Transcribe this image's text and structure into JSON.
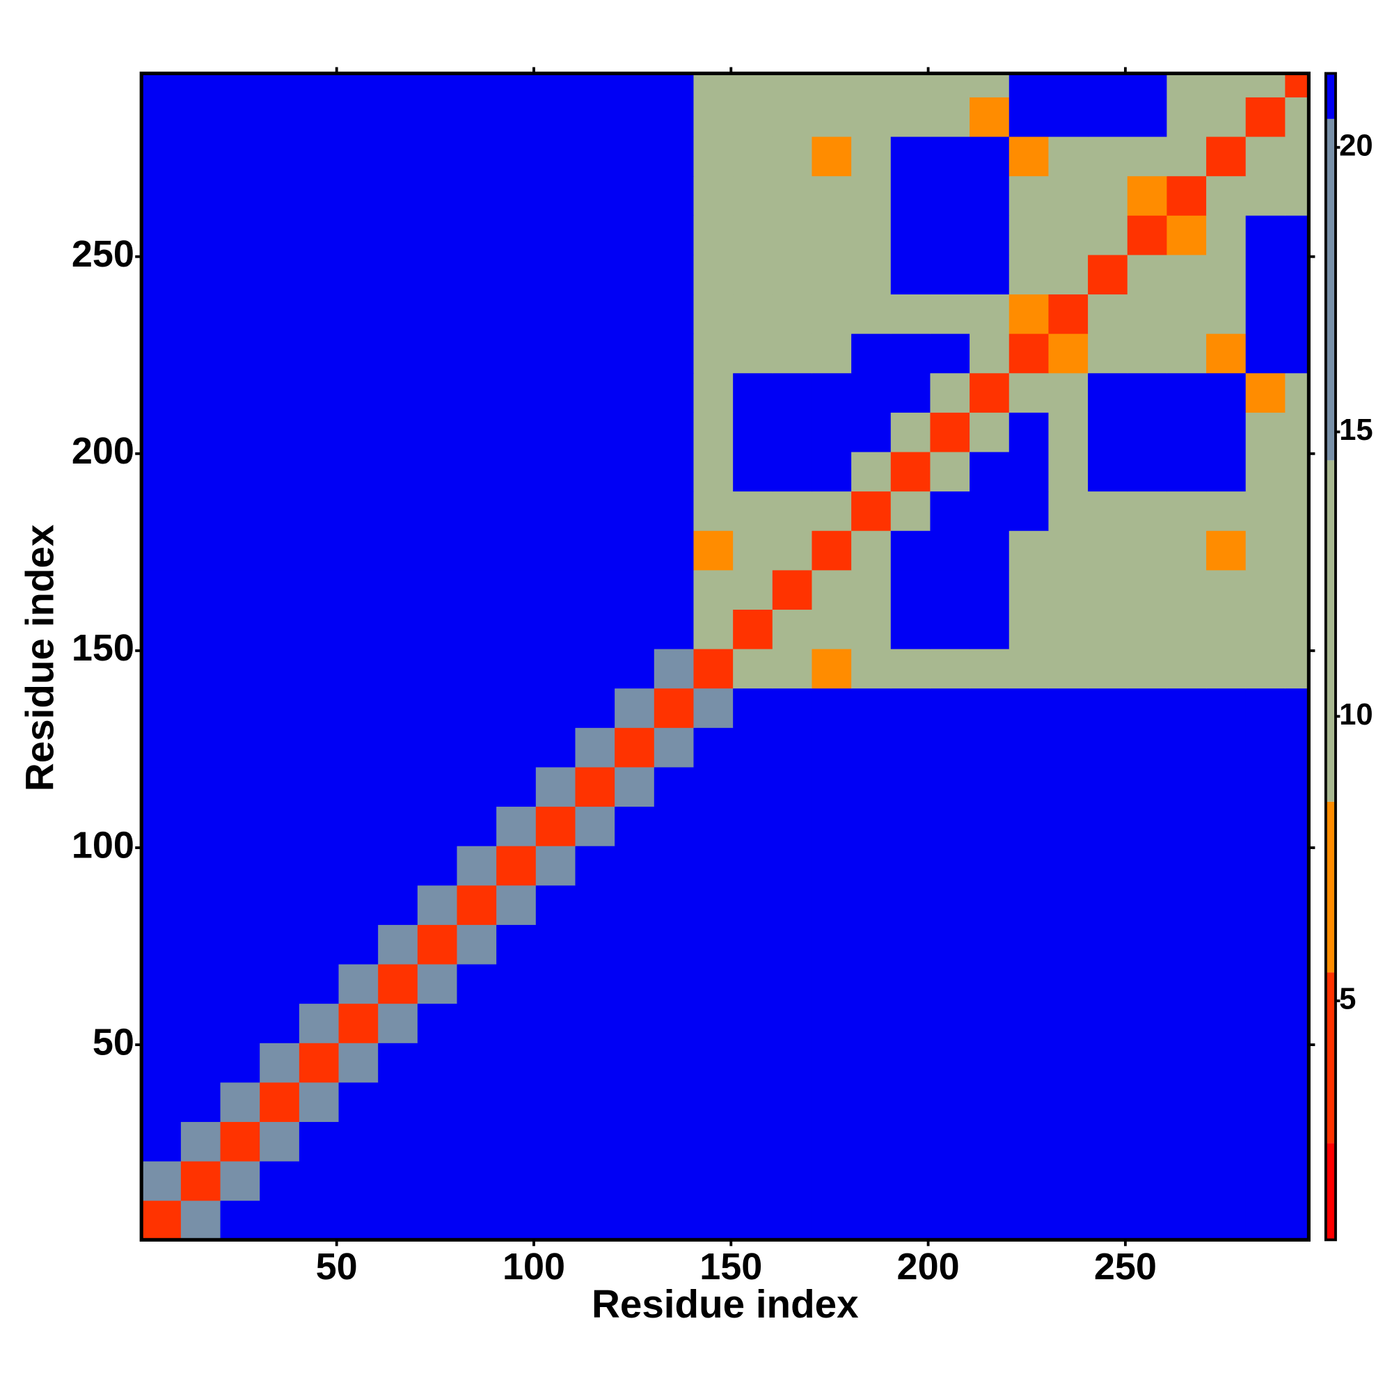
{
  "chart_data": {
    "type": "heatmap",
    "xlabel": "Residue index",
    "ylabel": "Residue index",
    "xlim": [
      0.5,
      296.5
    ],
    "ylim": [
      0.5,
      296.5
    ],
    "xticks": [
      50,
      100,
      150,
      200,
      250
    ],
    "yticks": [
      50,
      100,
      150,
      200,
      250
    ],
    "xbins": [
      0.5,
      10.5,
      20.5,
      30.5,
      40.5,
      50.5,
      60.5,
      70.5,
      80.5,
      90.5,
      100.5,
      110.5,
      120.5,
      130.5,
      140.5,
      150.5,
      160.5,
      170.5,
      180.5,
      190.5,
      200.5,
      210.5,
      220.5,
      230.5,
      240.5,
      250.5,
      260.5,
      270.5,
      280.5,
      290.5,
      296.5
    ],
    "ybins": [
      0.5,
      10.5,
      20.5,
      30.5,
      40.5,
      50.5,
      60.5,
      70.5,
      80.5,
      90.5,
      100.5,
      110.5,
      120.5,
      130.5,
      140.5,
      150.5,
      160.5,
      170.5,
      180.5,
      190.5,
      200.5,
      210.5,
      220.5,
      230.5,
      240.5,
      250.5,
      260.5,
      270.5,
      280.5,
      290.5,
      296.5
    ],
    "zlim": [
      0.8,
      21.3
    ],
    "zticks": [
      5,
      10,
      15,
      20
    ],
    "colorscale": [
      {
        "value": 2.5,
        "color": "#ff0000"
      },
      {
        "value": 5.5,
        "color": "#ff3300"
      },
      {
        "value": 8.5,
        "color": "#ff8c00"
      },
      {
        "value": 14.5,
        "color": "#a8b890"
      },
      {
        "value": 20.5,
        "color": "#7890a8"
      },
      {
        "value": 21.3,
        "color": "#0000f5"
      }
    ],
    "z": [
      [
        3,
        16,
        21,
        21,
        21,
        21,
        21,
        21,
        21,
        21,
        21,
        21,
        21,
        21,
        21,
        21,
        21,
        21,
        21,
        21,
        21,
        21,
        21,
        21,
        21,
        21,
        21,
        21,
        21,
        21
      ],
      [
        16,
        3,
        16,
        21,
        21,
        21,
        21,
        21,
        21,
        21,
        21,
        21,
        21,
        21,
        21,
        21,
        21,
        21,
        21,
        21,
        21,
        21,
        21,
        21,
        21,
        21,
        21,
        21,
        21,
        21
      ],
      [
        21,
        16,
        3,
        16,
        21,
        21,
        21,
        21,
        21,
        21,
        21,
        21,
        21,
        21,
        21,
        21,
        21,
        21,
        21,
        21,
        21,
        21,
        21,
        21,
        21,
        21,
        21,
        21,
        21,
        21
      ],
      [
        21,
        21,
        16,
        3,
        16,
        21,
        21,
        21,
        21,
        21,
        21,
        21,
        21,
        21,
        21,
        21,
        21,
        21,
        21,
        21,
        21,
        21,
        21,
        21,
        21,
        21,
        21,
        21,
        21,
        21
      ],
      [
        21,
        21,
        21,
        16,
        3,
        16,
        21,
        21,
        21,
        21,
        21,
        21,
        21,
        21,
        21,
        21,
        21,
        21,
        21,
        21,
        21,
        21,
        21,
        21,
        21,
        21,
        21,
        21,
        21,
        21
      ],
      [
        21,
        21,
        21,
        21,
        16,
        3,
        16,
        21,
        21,
        21,
        21,
        21,
        21,
        21,
        21,
        21,
        21,
        21,
        21,
        21,
        21,
        21,
        21,
        21,
        21,
        21,
        21,
        21,
        21,
        21
      ],
      [
        21,
        21,
        21,
        21,
        21,
        16,
        3,
        16,
        21,
        21,
        21,
        21,
        21,
        21,
        21,
        21,
        21,
        21,
        21,
        21,
        21,
        21,
        21,
        21,
        21,
        21,
        21,
        21,
        21,
        21
      ],
      [
        21,
        21,
        21,
        21,
        21,
        21,
        16,
        3,
        16,
        21,
        21,
        21,
        21,
        21,
        21,
        21,
        21,
        21,
        21,
        21,
        21,
        21,
        21,
        21,
        21,
        21,
        21,
        21,
        21,
        21
      ],
      [
        21,
        21,
        21,
        21,
        21,
        21,
        21,
        16,
        3,
        16,
        21,
        21,
        21,
        21,
        21,
        21,
        21,
        21,
        21,
        21,
        21,
        21,
        21,
        21,
        21,
        21,
        21,
        21,
        21,
        21
      ],
      [
        21,
        21,
        21,
        21,
        21,
        21,
        21,
        21,
        16,
        3,
        16,
        21,
        21,
        21,
        21,
        21,
        21,
        21,
        21,
        21,
        21,
        21,
        21,
        21,
        21,
        21,
        21,
        21,
        21,
        21
      ],
      [
        21,
        21,
        21,
        21,
        21,
        21,
        21,
        21,
        21,
        16,
        3,
        16,
        21,
        21,
        21,
        21,
        21,
        21,
        21,
        21,
        21,
        21,
        21,
        21,
        21,
        21,
        21,
        21,
        21,
        21
      ],
      [
        21,
        21,
        21,
        21,
        21,
        21,
        21,
        21,
        21,
        21,
        16,
        3,
        16,
        21,
        21,
        21,
        21,
        21,
        21,
        21,
        21,
        21,
        21,
        21,
        21,
        21,
        21,
        21,
        21,
        21
      ],
      [
        21,
        21,
        21,
        21,
        21,
        21,
        21,
        21,
        21,
        21,
        21,
        16,
        3,
        16,
        21,
        21,
        21,
        21,
        21,
        21,
        21,
        21,
        21,
        21,
        21,
        21,
        21,
        21,
        21,
        21
      ],
      [
        21,
        21,
        21,
        21,
        21,
        21,
        21,
        21,
        21,
        21,
        21,
        21,
        16,
        3,
        16,
        21,
        21,
        21,
        21,
        21,
        21,
        21,
        21,
        21,
        21,
        21,
        21,
        21,
        21,
        21
      ],
      [
        21,
        21,
        21,
        21,
        21,
        21,
        21,
        21,
        21,
        21,
        21,
        21,
        21,
        16,
        3,
        10,
        14,
        7,
        14,
        14,
        14,
        14,
        14,
        14,
        14,
        14,
        14,
        14,
        14,
        14
      ],
      [
        21,
        21,
        21,
        21,
        21,
        21,
        21,
        21,
        21,
        21,
        21,
        21,
        21,
        21,
        10,
        3,
        10,
        14,
        14,
        21,
        21,
        21,
        14,
        14,
        14,
        14,
        14,
        14,
        14,
        14
      ],
      [
        21,
        21,
        21,
        21,
        21,
        21,
        21,
        21,
        21,
        21,
        21,
        21,
        21,
        21,
        14,
        10,
        3,
        10,
        14,
        21,
        21,
        21,
        14,
        14,
        14,
        14,
        14,
        14,
        14,
        14
      ],
      [
        21,
        21,
        21,
        21,
        21,
        21,
        21,
        21,
        21,
        21,
        21,
        21,
        21,
        21,
        7,
        14,
        10,
        3,
        10,
        21,
        21,
        21,
        14,
        14,
        14,
        14,
        14,
        7,
        14,
        14
      ],
      [
        21,
        21,
        21,
        21,
        21,
        21,
        21,
        21,
        21,
        21,
        21,
        21,
        21,
        21,
        14,
        14,
        14,
        10,
        3,
        10,
        21,
        21,
        21,
        14,
        14,
        14,
        14,
        14,
        14,
        14
      ],
      [
        21,
        21,
        21,
        21,
        21,
        21,
        21,
        21,
        21,
        21,
        21,
        21,
        21,
        21,
        14,
        21,
        21,
        21,
        10,
        3,
        10,
        21,
        21,
        14,
        21,
        21,
        21,
        21,
        14,
        14
      ],
      [
        21,
        21,
        21,
        21,
        21,
        21,
        21,
        21,
        21,
        21,
        21,
        21,
        21,
        21,
        14,
        21,
        21,
        21,
        21,
        10,
        3,
        10,
        21,
        14,
        21,
        21,
        21,
        21,
        14,
        14
      ],
      [
        21,
        21,
        21,
        21,
        21,
        21,
        21,
        21,
        21,
        21,
        21,
        21,
        21,
        21,
        14,
        21,
        21,
        21,
        21,
        21,
        10,
        3,
        10,
        14,
        21,
        21,
        21,
        21,
        7,
        14
      ],
      [
        21,
        21,
        21,
        21,
        21,
        21,
        21,
        21,
        21,
        21,
        21,
        21,
        21,
        21,
        14,
        14,
        14,
        14,
        21,
        21,
        21,
        10,
        3,
        7,
        14,
        14,
        14,
        7,
        21,
        21
      ],
      [
        21,
        21,
        21,
        21,
        21,
        21,
        21,
        21,
        21,
        21,
        21,
        21,
        21,
        21,
        14,
        14,
        14,
        14,
        14,
        14,
        14,
        14,
        7,
        3,
        10,
        14,
        14,
        14,
        21,
        21
      ],
      [
        21,
        21,
        21,
        21,
        21,
        21,
        21,
        21,
        21,
        21,
        21,
        21,
        21,
        21,
        14,
        14,
        14,
        14,
        14,
        21,
        21,
        21,
        14,
        10,
        3,
        10,
        14,
        14,
        21,
        21
      ],
      [
        21,
        21,
        21,
        21,
        21,
        21,
        21,
        21,
        21,
        21,
        21,
        21,
        21,
        21,
        14,
        14,
        14,
        14,
        14,
        21,
        21,
        21,
        14,
        14,
        10,
        3,
        7,
        14,
        21,
        21
      ],
      [
        21,
        21,
        21,
        21,
        21,
        21,
        21,
        21,
        21,
        21,
        21,
        21,
        21,
        21,
        14,
        14,
        14,
        14,
        14,
        21,
        21,
        21,
        14,
        14,
        14,
        7,
        3,
        10,
        14,
        14
      ],
      [
        21,
        21,
        21,
        21,
        21,
        21,
        21,
        21,
        21,
        21,
        21,
        21,
        21,
        21,
        14,
        14,
        14,
        7,
        14,
        21,
        21,
        21,
        7,
        14,
        14,
        14,
        10,
        3,
        10,
        14
      ],
      [
        21,
        21,
        21,
        21,
        21,
        21,
        21,
        21,
        21,
        21,
        21,
        21,
        21,
        21,
        14,
        14,
        14,
        14,
        14,
        14,
        14,
        7,
        21,
        21,
        21,
        21,
        14,
        10,
        3,
        10
      ],
      [
        21,
        21,
        21,
        21,
        21,
        21,
        21,
        21,
        21,
        21,
        21,
        21,
        21,
        21,
        14,
        14,
        14,
        14,
        14,
        14,
        14,
        14,
        21,
        21,
        21,
        21,
        14,
        14,
        10,
        3
      ]
    ]
  }
}
